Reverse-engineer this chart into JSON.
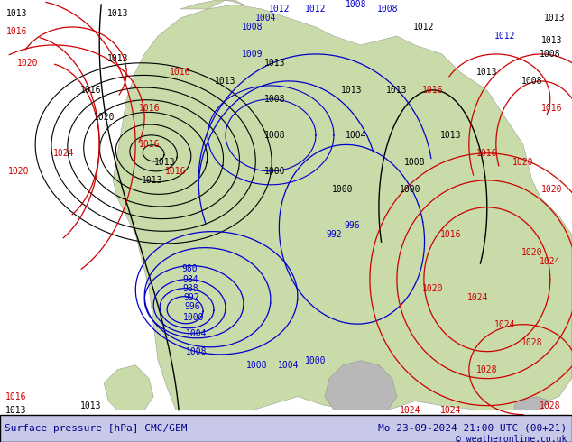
{
  "title_left": "Surface pressure [hPa] CMC/GEM",
  "title_right": "Mo 23-09-2024 21:00 UTC (00+21)",
  "copyright": "© weatheronline.co.uk",
  "bg_color": "#ffffff",
  "map_bg_color": "#e8f4f8",
  "land_color": "#d4edda",
  "ocean_color": "#cce5ff",
  "isobar_blue_color": "#0000cc",
  "isobar_red_color": "#cc0000",
  "isobar_black_color": "#000000",
  "label_fontsize": 7,
  "title_fontsize": 8,
  "copyright_fontsize": 7,
  "bottom_bar_color": "#c8c8e8",
  "bottom_text_color": "#00008b",
  "fig_width": 6.34,
  "fig_height": 4.9,
  "dpi": 100
}
